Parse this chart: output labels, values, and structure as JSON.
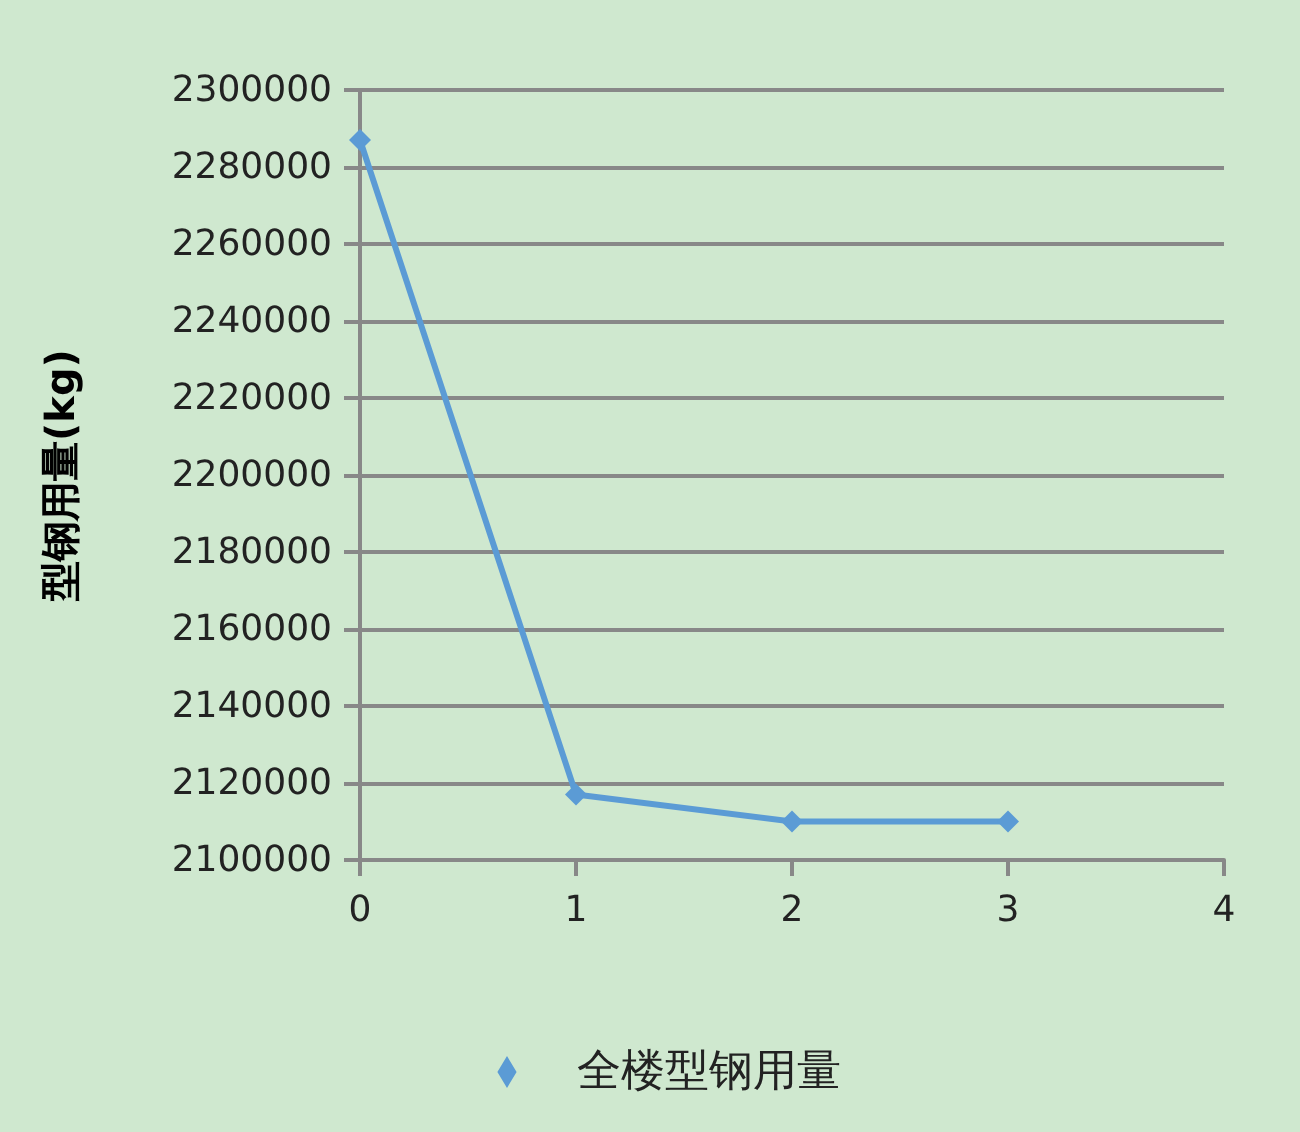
{
  "chart_data": {
    "type": "line",
    "ylabel": "型钢用量(kg)",
    "x": [
      0,
      1,
      2,
      3
    ],
    "series": [
      {
        "name": "全楼型钢用量",
        "color": "#5b9bd5",
        "values": [
          2287000,
          2117000,
          2110000,
          2110000
        ]
      }
    ],
    "xlim": [
      0,
      4
    ],
    "xticks": [
      0,
      1,
      2,
      3,
      4
    ],
    "ylim": [
      2100000,
      2300000
    ],
    "yticks": [
      2100000,
      2120000,
      2140000,
      2160000,
      2180000,
      2200000,
      2220000,
      2240000,
      2260000,
      2280000,
      2300000
    ],
    "grid": "y",
    "legend": "bottom",
    "marker": "diamond",
    "line_style": "solid"
  }
}
